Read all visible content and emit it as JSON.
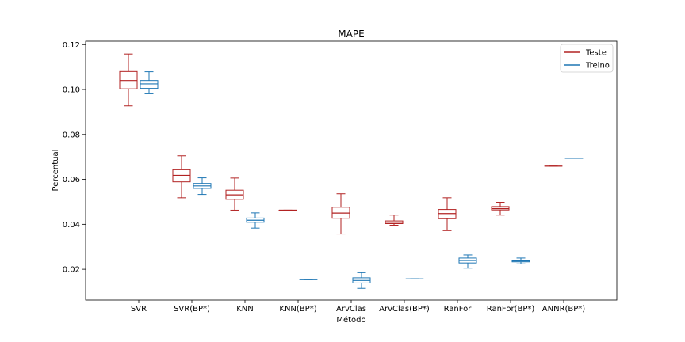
{
  "chart_data": {
    "type": "boxplot",
    "title": "MAPE",
    "xlabel": "Método",
    "ylabel": "Percentual",
    "ylim": [
      0.0063,
      0.1215
    ],
    "yticks": [
      0.02,
      0.04,
      0.06,
      0.08,
      0.1,
      0.12
    ],
    "ytick_labels": [
      "0.02",
      "0.04",
      "0.06",
      "0.08",
      "0.10",
      "0.12"
    ],
    "categories": [
      "SVR",
      "SVR(BP*)",
      "KNN",
      "KNN(BP*)",
      "ArvClas",
      "ArvClas(BP*)",
      "RanFor",
      "RanFor(BP*)",
      "ANNR(BP*)"
    ],
    "legend": {
      "position": "top-right"
    },
    "series": [
      {
        "name": "Teste",
        "color": "#b22222",
        "boxes": [
          {
            "min": 0.0927,
            "q1": 0.1003,
            "median": 0.104,
            "q3": 0.108,
            "max": 0.1158
          },
          {
            "min": 0.0518,
            "q1": 0.0589,
            "median": 0.0618,
            "q3": 0.0643,
            "max": 0.0705
          },
          {
            "min": 0.0463,
            "q1": 0.0511,
            "median": 0.0531,
            "q3": 0.0552,
            "max": 0.0606
          },
          {
            "min": 0.0463,
            "q1": 0.0463,
            "median": 0.0463,
            "q3": 0.0463,
            "max": 0.0463
          },
          {
            "min": 0.0357,
            "q1": 0.0427,
            "median": 0.045,
            "q3": 0.0476,
            "max": 0.0536
          },
          {
            "min": 0.0396,
            "q1": 0.0403,
            "median": 0.0409,
            "q3": 0.0415,
            "max": 0.0441
          },
          {
            "min": 0.0372,
            "q1": 0.0425,
            "median": 0.0448,
            "q3": 0.0466,
            "max": 0.0518
          },
          {
            "min": 0.0441,
            "q1": 0.0464,
            "median": 0.047,
            "q3": 0.0479,
            "max": 0.0498
          },
          {
            "min": 0.0659,
            "q1": 0.0659,
            "median": 0.0659,
            "q3": 0.0659,
            "max": 0.0659
          }
        ]
      },
      {
        "name": "Treino",
        "color": "#1f77b4",
        "boxes": [
          {
            "min": 0.0981,
            "q1": 0.1005,
            "median": 0.1025,
            "q3": 0.104,
            "max": 0.1079
          },
          {
            "min": 0.0533,
            "q1": 0.056,
            "median": 0.0571,
            "q3": 0.0582,
            "max": 0.0607
          },
          {
            "min": 0.0383,
            "q1": 0.0409,
            "median": 0.0418,
            "q3": 0.0428,
            "max": 0.0451
          },
          {
            "min": 0.0154,
            "q1": 0.0154,
            "median": 0.0154,
            "q3": 0.0154,
            "max": 0.0154
          },
          {
            "min": 0.0115,
            "q1": 0.0139,
            "median": 0.015,
            "q3": 0.0162,
            "max": 0.0185
          },
          {
            "min": 0.0157,
            "q1": 0.0157,
            "median": 0.0157,
            "q3": 0.0157,
            "max": 0.0157
          },
          {
            "min": 0.0205,
            "q1": 0.0228,
            "median": 0.0239,
            "q3": 0.025,
            "max": 0.0264
          },
          {
            "min": 0.0224,
            "q1": 0.0233,
            "median": 0.0237,
            "q3": 0.024,
            "max": 0.025
          },
          {
            "min": 0.0694,
            "q1": 0.0694,
            "median": 0.0694,
            "q3": 0.0694,
            "max": 0.0694
          }
        ]
      }
    ]
  }
}
